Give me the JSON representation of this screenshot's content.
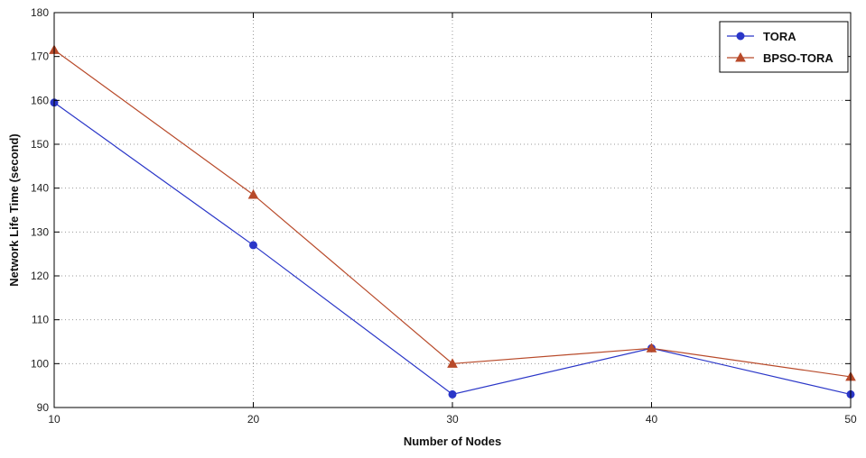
{
  "chart_data": {
    "type": "line",
    "title": "",
    "xlabel": "Number of Nodes",
    "ylabel": "Network Life Time (second)",
    "x": [
      10,
      20,
      30,
      40,
      50
    ],
    "xlim": [
      10,
      50
    ],
    "ylim": [
      90,
      180
    ],
    "xticks": [
      10,
      20,
      30,
      40,
      50
    ],
    "yticks": [
      90,
      100,
      110,
      120,
      130,
      140,
      150,
      160,
      170,
      180
    ],
    "grid": true,
    "legend_position": "top-right",
    "series": [
      {
        "name": "TORA",
        "values": [
          159.5,
          127,
          93,
          103.5,
          93
        ],
        "color": "#2a36c8",
        "marker": "circle"
      },
      {
        "name": "BPSO-TORA",
        "values": [
          171.5,
          138.5,
          100,
          103.5,
          97
        ],
        "color": "#b84a2a",
        "marker": "triangle"
      }
    ]
  }
}
